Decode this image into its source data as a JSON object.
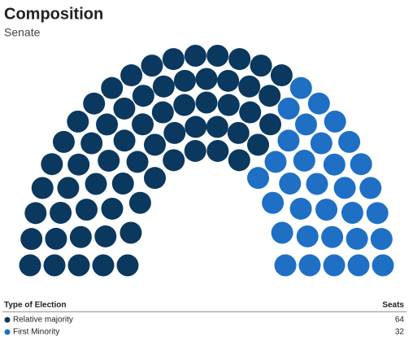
{
  "chart_data": {
    "type": "parliament",
    "title": "Composition",
    "subtitle": "Senate",
    "legend_title": "Type of Election",
    "value_header": "Seats",
    "series": [
      {
        "name": "Relative majority",
        "color": "#0b385e",
        "value": 64
      },
      {
        "name": "First Minority",
        "color": "#1f6fc5",
        "value": 32
      }
    ]
  }
}
